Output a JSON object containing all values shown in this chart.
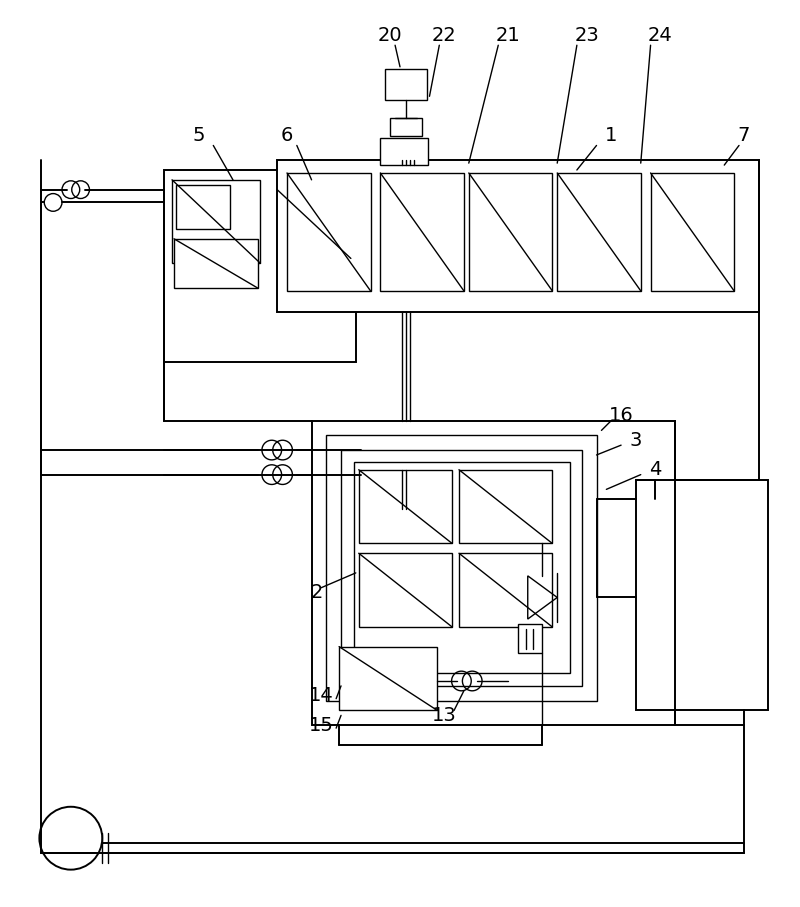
{
  "bg_color": "#ffffff",
  "line_color": "#000000",
  "lw": 1.4,
  "lw_thin": 1.0,
  "fig_width": 8.0,
  "fig_height": 9.07
}
